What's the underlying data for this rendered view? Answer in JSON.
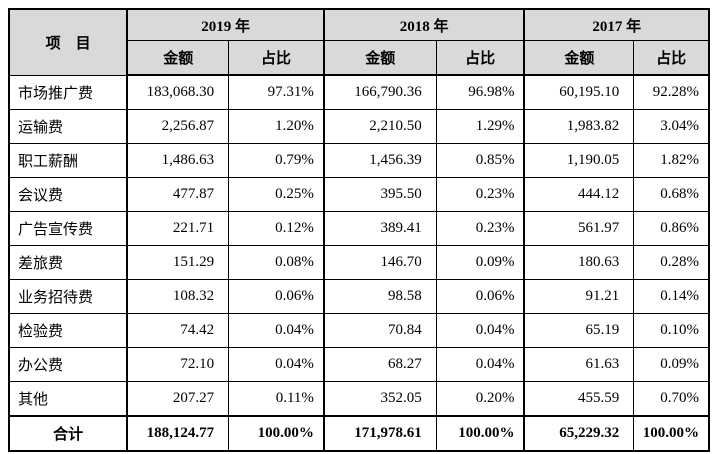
{
  "table": {
    "item_header": "项　目",
    "year_headers": [
      "2019 年",
      "2018 年",
      "2017 年"
    ],
    "sub_headers": {
      "amount": "金额",
      "ratio": "占比"
    },
    "rows": [
      {
        "item": "市场推广费",
        "cells": [
          "183,068.30",
          "97.31%",
          "166,790.36",
          "96.98%",
          "60,195.10",
          "92.28%"
        ]
      },
      {
        "item": "运输费",
        "cells": [
          "2,256.87",
          "1.20%",
          "2,210.50",
          "1.29%",
          "1,983.82",
          "3.04%"
        ]
      },
      {
        "item": "职工薪酬",
        "cells": [
          "1,486.63",
          "0.79%",
          "1,456.39",
          "0.85%",
          "1,190.05",
          "1.82%"
        ]
      },
      {
        "item": "会议费",
        "cells": [
          "477.87",
          "0.25%",
          "395.50",
          "0.23%",
          "444.12",
          "0.68%"
        ]
      },
      {
        "item": "广告宣传费",
        "cells": [
          "221.71",
          "0.12%",
          "389.41",
          "0.23%",
          "561.97",
          "0.86%"
        ]
      },
      {
        "item": "差旅费",
        "cells": [
          "151.29",
          "0.08%",
          "146.70",
          "0.09%",
          "180.63",
          "0.28%"
        ]
      },
      {
        "item": "业务招待费",
        "cells": [
          "108.32",
          "0.06%",
          "98.58",
          "0.06%",
          "91.21",
          "0.14%"
        ]
      },
      {
        "item": "检验费",
        "cells": [
          "74.42",
          "0.04%",
          "70.84",
          "0.04%",
          "65.19",
          "0.10%"
        ]
      },
      {
        "item": "办公费",
        "cells": [
          "72.10",
          "0.04%",
          "68.27",
          "0.04%",
          "61.63",
          "0.09%"
        ]
      },
      {
        "item": "其他",
        "cells": [
          "207.27",
          "0.11%",
          "352.05",
          "0.20%",
          "455.59",
          "0.70%"
        ]
      }
    ],
    "total": {
      "item": "合计",
      "cells": [
        "188,124.77",
        "100.00%",
        "171,978.61",
        "100.00%",
        "65,229.32",
        "100.00%"
      ]
    },
    "colors": {
      "header_bg": "#d9d9d9",
      "border": "#000000",
      "text": "#000000"
    }
  }
}
